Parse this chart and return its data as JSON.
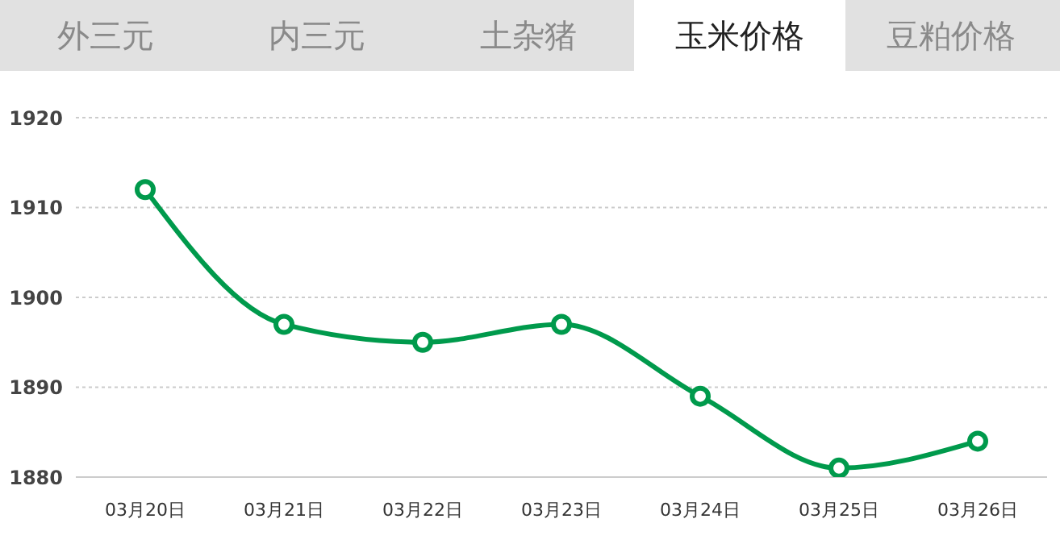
{
  "chart_data": {
    "type": "line",
    "annotations": [
      "外三元",
      "内三元",
      "土杂猪",
      "玉米价格",
      "豆粕价格"
    ],
    "categories": [
      "03月20日",
      "03月21日",
      "03月22日",
      "03月23日",
      "03月24日",
      "03月25日",
      "03月26日"
    ],
    "series": [
      {
        "color": "#009a4c",
        "values": [
          1912,
          1897,
          1895,
          1897,
          1889,
          1881,
          1884
        ]
      }
    ],
    "ylim": [
      1880,
      1920
    ],
    "yticks": [
      1880,
      1890,
      1900,
      1910,
      1920
    ],
    "grid": "y",
    "legend": false,
    "marker": "circle",
    "line_style": "solid"
  }
}
